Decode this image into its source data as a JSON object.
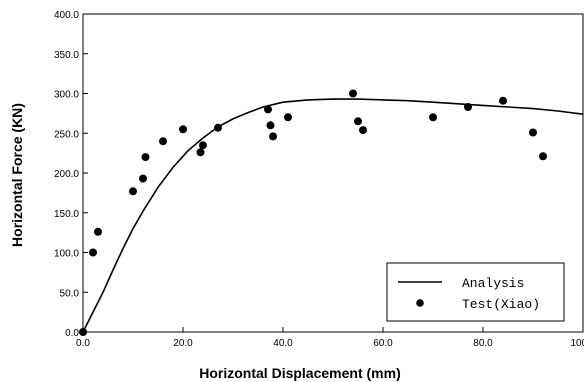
{
  "chart_data": {
    "type": "line",
    "title": "",
    "xlabel": "Horizontal Displacement (mm)",
    "ylabel": "Horizontal Force (KN)",
    "xlim": [
      0,
      100
    ],
    "ylim": [
      0,
      400
    ],
    "x_ticks": [
      0,
      20,
      40,
      60,
      80,
      100
    ],
    "x_tick_labels": [
      "0.0",
      "20.0",
      "40.0",
      "60.0",
      "80.0",
      "100.0"
    ],
    "y_ticks": [
      0,
      50,
      100,
      150,
      200,
      250,
      300,
      350,
      400
    ],
    "y_tick_labels": [
      "0.0",
      "50.0",
      "100.0",
      "150.0",
      "200.0",
      "250.0",
      "300.0",
      "350.0",
      "400.0"
    ],
    "grid": false,
    "legend_position": "bottom-right",
    "series": [
      {
        "name": "Analysis",
        "style": "line",
        "color": "#000000",
        "x": [
          0,
          2,
          4,
          6,
          8,
          10,
          12,
          15,
          18,
          21,
          24,
          27,
          30,
          33,
          36,
          40,
          45,
          50,
          55,
          60,
          65,
          70,
          75,
          80,
          85,
          90,
          95,
          100
        ],
        "y": [
          0,
          25,
          50,
          78,
          105,
          130,
          152,
          182,
          207,
          228,
          244,
          258,
          268,
          276,
          283,
          289,
          292,
          293,
          293,
          292,
          291,
          289,
          287,
          285,
          283,
          281,
          278,
          274
        ]
      },
      {
        "name": "Test(Xiao)",
        "style": "scatter",
        "color": "#000000",
        "x": [
          0,
          2,
          3,
          10,
          12,
          12.5,
          16,
          20,
          23.5,
          24,
          27,
          37,
          37.5,
          38,
          41,
          54,
          55,
          56,
          70,
          77,
          84,
          90,
          92
        ],
        "y": [
          0,
          100,
          126,
          177,
          193,
          220,
          240,
          255,
          226,
          235,
          257,
          280,
          260,
          246,
          270,
          300,
          265,
          254,
          270,
          283,
          291,
          251,
          221
        ]
      }
    ]
  }
}
